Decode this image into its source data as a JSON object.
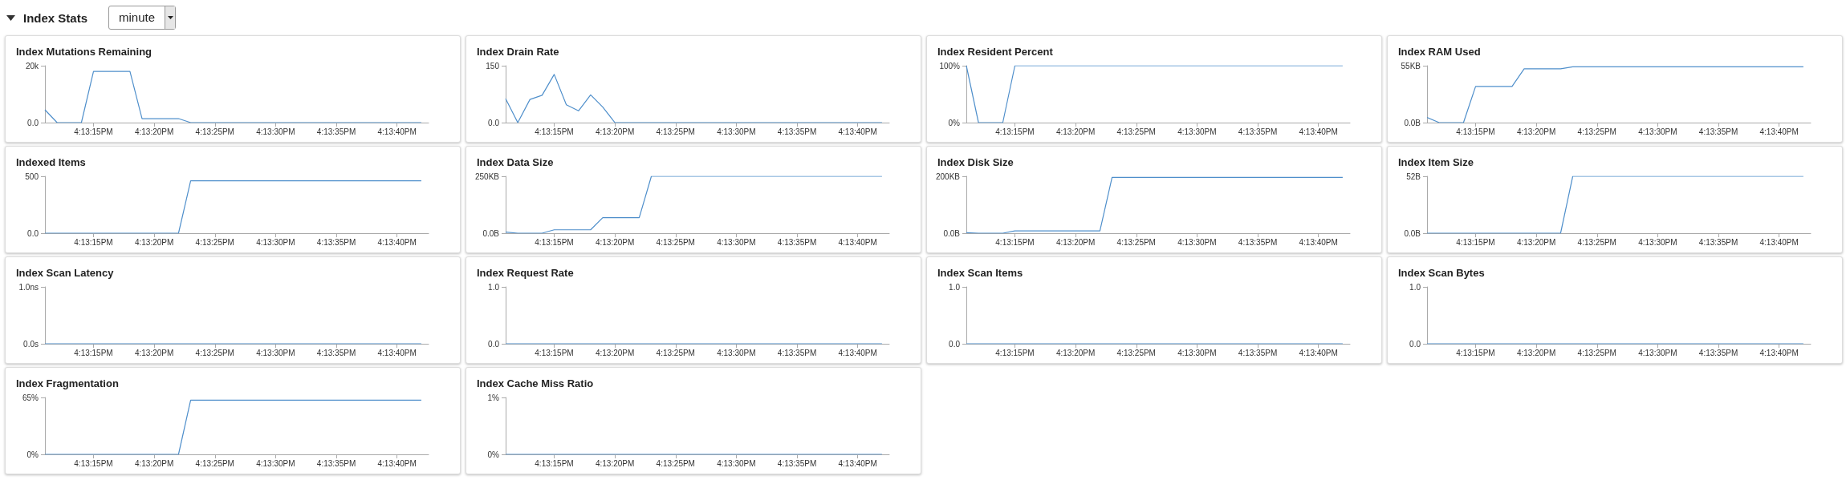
{
  "chart_data": [
    {
      "type": "other",
      "title": "Index Stats",
      "annotations": [
        "minute"
      ]
    },
    {
      "type": "line",
      "title": "Index Mutations Remaining",
      "color": "#4f8fcb",
      "grid": false,
      "marker": "none",
      "line_style": "solid",
      "xlim": [
        16.219722,
        16.2285
      ],
      "xticks": [
        {
          "value": 16.220833,
          "label": "4:13:15PM"
        },
        {
          "value": 16.222222,
          "label": "4:13:20PM"
        },
        {
          "value": 16.223611,
          "label": "4:13:25PM"
        },
        {
          "value": 16.225,
          "label": "4:13:30PM"
        },
        {
          "value": 16.226389,
          "label": "4:13:35PM"
        },
        {
          "value": 16.227778,
          "label": "4:13:40PM"
        }
      ],
      "ylim": [
        0,
        20000
      ],
      "yticks": [
        {
          "value": 0,
          "label": "0.0"
        },
        {
          "value": 20000,
          "label": "20k"
        }
      ],
      "x": [
        16.219722,
        16.22,
        16.220278,
        16.220556,
        16.220833,
        16.221111,
        16.221389,
        16.221667,
        16.221944,
        16.222222,
        16.2225,
        16.222778,
        16.223056,
        16.223333,
        16.223611,
        16.223889,
        16.224167,
        16.224444,
        16.224722,
        16.225,
        16.225278,
        16.225556,
        16.225833,
        16.226111,
        16.226389,
        16.226667,
        16.226944,
        16.227222,
        16.2275,
        16.227778,
        16.228056,
        16.228333
      ],
      "values": [
        4500,
        0,
        0,
        0,
        18000,
        18000,
        18000,
        18000,
        1400,
        1400,
        1400,
        1400,
        0,
        0,
        0,
        0,
        0,
        0,
        0,
        0,
        0,
        0,
        0,
        0,
        0,
        0,
        0,
        0,
        0,
        0,
        0,
        0
      ]
    },
    {
      "type": "line",
      "title": "Index Drain Rate",
      "color": "#4f8fcb",
      "grid": false,
      "marker": "none",
      "line_style": "solid",
      "xlim": [
        16.219722,
        16.2285
      ],
      "xticks": [
        {
          "value": 16.220833,
          "label": "4:13:15PM"
        },
        {
          "value": 16.222222,
          "label": "4:13:20PM"
        },
        {
          "value": 16.223611,
          "label": "4:13:25PM"
        },
        {
          "value": 16.225,
          "label": "4:13:30PM"
        },
        {
          "value": 16.226389,
          "label": "4:13:35PM"
        },
        {
          "value": 16.227778,
          "label": "4:13:40PM"
        }
      ],
      "ylim": [
        0,
        150
      ],
      "yticks": [
        {
          "value": 0,
          "label": "0.0"
        },
        150
      ],
      "x": [
        16.219722,
        16.22,
        16.220278,
        16.220556,
        16.220833,
        16.221111,
        16.221389,
        16.221667,
        16.221944,
        16.222222,
        16.2225,
        16.222778,
        16.223056,
        16.223333,
        16.223611,
        16.223889,
        16.224167,
        16.224444,
        16.224722,
        16.225,
        16.225278,
        16.225556,
        16.225833,
        16.226111,
        16.226389,
        16.226667,
        16.226944,
        16.227222,
        16.2275,
        16.227778,
        16.228056,
        16.228333
      ],
      "values": [
        63,
        0,
        61,
        72,
        127,
        47,
        31,
        73,
        41,
        0,
        0,
        0,
        0,
        0,
        0,
        0,
        0,
        0,
        0,
        0,
        0,
        0,
        0,
        0,
        0,
        0,
        0,
        0,
        0,
        0,
        0,
        0
      ]
    },
    {
      "type": "line",
      "title": "Index Resident Percent",
      "color": "#4f8fcb",
      "grid": false,
      "marker": "none",
      "line_style": "solid",
      "xlim": [
        16.219722,
        16.2285
      ],
      "xticks": [
        {
          "value": 16.220833,
          "label": "4:13:15PM"
        },
        {
          "value": 16.222222,
          "label": "4:13:20PM"
        },
        {
          "value": 16.223611,
          "label": "4:13:25PM"
        },
        {
          "value": 16.225,
          "label": "4:13:30PM"
        },
        {
          "value": 16.226389,
          "label": "4:13:35PM"
        },
        {
          "value": 16.227778,
          "label": "4:13:40PM"
        }
      ],
      "ylim": [
        0,
        100
      ],
      "yticks": [
        {
          "value": 0,
          "label": "0%"
        },
        {
          "value": 100,
          "label": "100%"
        }
      ],
      "x": [
        16.219722,
        16.22,
        16.220278,
        16.220556,
        16.220833,
        16.221111,
        16.221389,
        16.221667,
        16.221944,
        16.222222,
        16.2225,
        16.222778,
        16.223056,
        16.223333,
        16.223611,
        16.223889,
        16.224167,
        16.224444,
        16.224722,
        16.225,
        16.225278,
        16.225556,
        16.225833,
        16.226111,
        16.226389,
        16.226667,
        16.226944,
        16.227222,
        16.2275,
        16.227778,
        16.228056,
        16.228333
      ],
      "values": [
        100,
        0,
        0,
        0,
        100,
        100,
        100,
        100,
        100,
        100,
        100,
        100,
        100,
        100,
        100,
        100,
        100,
        100,
        100,
        100,
        100,
        100,
        100,
        100,
        100,
        100,
        100,
        100,
        100,
        100,
        100,
        100
      ]
    },
    {
      "type": "line",
      "title": "Index RAM Used",
      "color": "#4f8fcb",
      "grid": false,
      "marker": "none",
      "line_style": "solid",
      "xlim": [
        16.219722,
        16.2285
      ],
      "xticks": [
        {
          "value": 16.220833,
          "label": "4:13:15PM"
        },
        {
          "value": 16.222222,
          "label": "4:13:20PM"
        },
        {
          "value": 16.223611,
          "label": "4:13:25PM"
        },
        {
          "value": 16.225,
          "label": "4:13:30PM"
        },
        {
          "value": 16.226389,
          "label": "4:13:35PM"
        },
        {
          "value": 16.227778,
          "label": "4:13:40PM"
        }
      ],
      "ylim": [
        0,
        55
      ],
      "yticks": [
        {
          "value": 0,
          "label": "0.0B"
        },
        {
          "value": 55,
          "label": "55KB"
        }
      ],
      "x": [
        16.219722,
        16.22,
        16.220278,
        16.220556,
        16.220833,
        16.221111,
        16.221389,
        16.221667,
        16.221944,
        16.222222,
        16.2225,
        16.222778,
        16.223056,
        16.223333,
        16.223611,
        16.223889,
        16.224167,
        16.224444,
        16.224722,
        16.225,
        16.225278,
        16.225556,
        16.225833,
        16.226111,
        16.226389,
        16.226667,
        16.226944,
        16.227222,
        16.2275,
        16.227778,
        16.228056,
        16.228333
      ],
      "values": [
        5,
        0,
        0,
        0,
        35,
        35,
        35,
        35,
        52,
        52,
        52,
        52,
        54,
        54,
        54,
        54,
        54,
        54,
        54,
        54,
        54,
        54,
        54,
        54,
        54,
        54,
        54,
        54,
        54,
        54,
        54,
        54
      ]
    },
    {
      "type": "line",
      "title": "Indexed Items",
      "color": "#4f8fcb",
      "grid": false,
      "marker": "none",
      "line_style": "solid",
      "xlim": [
        16.219722,
        16.2285
      ],
      "xticks": [
        {
          "value": 16.220833,
          "label": "4:13:15PM"
        },
        {
          "value": 16.222222,
          "label": "4:13:20PM"
        },
        {
          "value": 16.223611,
          "label": "4:13:25PM"
        },
        {
          "value": 16.225,
          "label": "4:13:30PM"
        },
        {
          "value": 16.226389,
          "label": "4:13:35PM"
        },
        {
          "value": 16.227778,
          "label": "4:13:40PM"
        }
      ],
      "ylim": [
        0,
        500
      ],
      "yticks": [
        {
          "value": 0,
          "label": "0.0"
        },
        500
      ],
      "x": [
        16.219722,
        16.22,
        16.220278,
        16.220556,
        16.220833,
        16.221111,
        16.221389,
        16.221667,
        16.221944,
        16.222222,
        16.2225,
        16.222778,
        16.223056,
        16.223333,
        16.223611,
        16.223889,
        16.224167,
        16.224444,
        16.224722,
        16.225,
        16.225278,
        16.225556,
        16.225833,
        16.226111,
        16.226389,
        16.226667,
        16.226944,
        16.227222,
        16.2275,
        16.227778,
        16.228056,
        16.228333
      ],
      "values": [
        0,
        0,
        0,
        0,
        0,
        0,
        0,
        0,
        0,
        0,
        0,
        0,
        460,
        460,
        460,
        460,
        460,
        460,
        460,
        460,
        460,
        460,
        460,
        460,
        460,
        460,
        460,
        460,
        460,
        460,
        460,
        460
      ]
    },
    {
      "type": "line",
      "title": "Index Data Size",
      "color": "#4f8fcb",
      "grid": false,
      "marker": "none",
      "line_style": "solid",
      "xlim": [
        16.219722,
        16.2285
      ],
      "xticks": [
        {
          "value": 16.220833,
          "label": "4:13:15PM"
        },
        {
          "value": 16.222222,
          "label": "4:13:20PM"
        },
        {
          "value": 16.223611,
          "label": "4:13:25PM"
        },
        {
          "value": 16.225,
          "label": "4:13:30PM"
        },
        {
          "value": 16.226389,
          "label": "4:13:35PM"
        },
        {
          "value": 16.227778,
          "label": "4:13:40PM"
        }
      ],
      "ylim": [
        0,
        250
      ],
      "yticks": [
        {
          "value": 0,
          "label": "0.0B"
        },
        {
          "value": 250,
          "label": "250KB"
        }
      ],
      "x": [
        16.219722,
        16.22,
        16.220278,
        16.220556,
        16.220833,
        16.221111,
        16.221389,
        16.221667,
        16.221944,
        16.222222,
        16.2225,
        16.222778,
        16.223056,
        16.223333,
        16.223611,
        16.223889,
        16.224167,
        16.224444,
        16.224722,
        16.225,
        16.225278,
        16.225556,
        16.225833,
        16.226111,
        16.226389,
        16.226667,
        16.226944,
        16.227222,
        16.2275,
        16.227778,
        16.228056,
        16.228333
      ],
      "values": [
        5,
        0,
        0,
        0,
        15,
        15,
        15,
        15,
        68,
        68,
        68,
        68,
        250,
        250,
        250,
        250,
        250,
        250,
        250,
        250,
        250,
        250,
        250,
        250,
        250,
        250,
        250,
        250,
        250,
        250,
        250,
        250
      ]
    },
    {
      "type": "line",
      "title": "Index Disk Size",
      "color": "#4f8fcb",
      "grid": false,
      "marker": "none",
      "line_style": "solid",
      "xlim": [
        16.219722,
        16.2285
      ],
      "xticks": [
        {
          "value": 16.220833,
          "label": "4:13:15PM"
        },
        {
          "value": 16.222222,
          "label": "4:13:20PM"
        },
        {
          "value": 16.223611,
          "label": "4:13:25PM"
        },
        {
          "value": 16.225,
          "label": "4:13:30PM"
        },
        {
          "value": 16.226389,
          "label": "4:13:35PM"
        },
        {
          "value": 16.227778,
          "label": "4:13:40PM"
        }
      ],
      "ylim": [
        0,
        200
      ],
      "yticks": [
        {
          "value": 0,
          "label": "0.0B"
        },
        {
          "value": 200,
          "label": "200KB"
        }
      ],
      "x": [
        16.219722,
        16.22,
        16.220278,
        16.220556,
        16.220833,
        16.221111,
        16.221389,
        16.221667,
        16.221944,
        16.222222,
        16.2225,
        16.222778,
        16.223056,
        16.223333,
        16.223611,
        16.223889,
        16.224167,
        16.224444,
        16.224722,
        16.225,
        16.225278,
        16.225556,
        16.225833,
        16.226111,
        16.226389,
        16.226667,
        16.226944,
        16.227222,
        16.2275,
        16.227778,
        16.228056,
        16.228333
      ],
      "values": [
        2,
        0,
        0,
        0,
        8,
        8,
        8,
        8,
        8,
        8,
        8,
        8,
        196,
        196,
        196,
        196,
        196,
        196,
        196,
        196,
        196,
        196,
        196,
        196,
        196,
        196,
        196,
        196,
        196,
        196,
        196,
        196
      ]
    },
    {
      "type": "line",
      "title": "Index Item Size",
      "color": "#4f8fcb",
      "grid": false,
      "marker": "none",
      "line_style": "solid",
      "xlim": [
        16.219722,
        16.2285
      ],
      "xticks": [
        {
          "value": 16.220833,
          "label": "4:13:15PM"
        },
        {
          "value": 16.222222,
          "label": "4:13:20PM"
        },
        {
          "value": 16.223611,
          "label": "4:13:25PM"
        },
        {
          "value": 16.225,
          "label": "4:13:30PM"
        },
        {
          "value": 16.226389,
          "label": "4:13:35PM"
        },
        {
          "value": 16.227778,
          "label": "4:13:40PM"
        }
      ],
      "ylim": [
        0,
        52
      ],
      "yticks": [
        {
          "value": 0,
          "label": "0.0B"
        },
        {
          "value": 52,
          "label": "52B"
        }
      ],
      "x": [
        16.219722,
        16.22,
        16.220278,
        16.220556,
        16.220833,
        16.221111,
        16.221389,
        16.221667,
        16.221944,
        16.222222,
        16.2225,
        16.222778,
        16.223056,
        16.223333,
        16.223611,
        16.223889,
        16.224167,
        16.224444,
        16.224722,
        16.225,
        16.225278,
        16.225556,
        16.225833,
        16.226111,
        16.226389,
        16.226667,
        16.226944,
        16.227222,
        16.2275,
        16.227778,
        16.228056,
        16.228333
      ],
      "values": [
        0,
        0,
        0,
        0,
        0,
        0,
        0,
        0,
        0,
        0,
        0,
        0,
        52,
        52,
        52,
        52,
        52,
        52,
        52,
        52,
        52,
        52,
        52,
        52,
        52,
        52,
        52,
        52,
        52,
        52,
        52,
        52
      ]
    },
    {
      "type": "line",
      "title": "Index Scan Latency",
      "color": "#4f8fcb",
      "grid": false,
      "marker": "none",
      "line_style": "solid",
      "xlim": [
        16.219722,
        16.2285
      ],
      "xticks": [
        {
          "value": 16.220833,
          "label": "4:13:15PM"
        },
        {
          "value": 16.222222,
          "label": "4:13:20PM"
        },
        {
          "value": 16.223611,
          "label": "4:13:25PM"
        },
        {
          "value": 16.225,
          "label": "4:13:30PM"
        },
        {
          "value": 16.226389,
          "label": "4:13:35PM"
        },
        {
          "value": 16.227778,
          "label": "4:13:40PM"
        }
      ],
      "ylim": [
        0,
        1
      ],
      "yticks": [
        {
          "value": 0,
          "label": "0.0s"
        },
        {
          "value": 1,
          "label": "1.0ns"
        }
      ],
      "x": [
        16.219722,
        16.228333
      ],
      "values": [
        0,
        0
      ]
    },
    {
      "type": "line",
      "title": "Index Request Rate",
      "color": "#4f8fcb",
      "grid": false,
      "marker": "none",
      "line_style": "solid",
      "xlim": [
        16.219722,
        16.2285
      ],
      "xticks": [
        {
          "value": 16.220833,
          "label": "4:13:15PM"
        },
        {
          "value": 16.222222,
          "label": "4:13:20PM"
        },
        {
          "value": 16.223611,
          "label": "4:13:25PM"
        },
        {
          "value": 16.225,
          "label": "4:13:30PM"
        },
        {
          "value": 16.226389,
          "label": "4:13:35PM"
        },
        {
          "value": 16.227778,
          "label": "4:13:40PM"
        }
      ],
      "ylim": [
        0,
        1
      ],
      "yticks": [
        {
          "value": 0,
          "label": "0.0"
        },
        {
          "value": 1,
          "label": "1.0"
        }
      ],
      "x": [
        16.219722,
        16.228333
      ],
      "values": [
        0,
        0
      ]
    },
    {
      "type": "line",
      "title": "Index Scan Items",
      "color": "#4f8fcb",
      "grid": false,
      "marker": "none",
      "line_style": "solid",
      "xlim": [
        16.219722,
        16.2285
      ],
      "xticks": [
        {
          "value": 16.220833,
          "label": "4:13:15PM"
        },
        {
          "value": 16.222222,
          "label": "4:13:20PM"
        },
        {
          "value": 16.223611,
          "label": "4:13:25PM"
        },
        {
          "value": 16.225,
          "label": "4:13:30PM"
        },
        {
          "value": 16.226389,
          "label": "4:13:35PM"
        },
        {
          "value": 16.227778,
          "label": "4:13:40PM"
        }
      ],
      "ylim": [
        0,
        1
      ],
      "yticks": [
        {
          "value": 0,
          "label": "0.0"
        },
        {
          "value": 1,
          "label": "1.0"
        }
      ],
      "x": [
        16.219722,
        16.228333
      ],
      "values": [
        0,
        0
      ]
    },
    {
      "type": "line",
      "title": "Index Scan Bytes",
      "color": "#4f8fcb",
      "grid": false,
      "marker": "none",
      "line_style": "solid",
      "xlim": [
        16.219722,
        16.2285
      ],
      "xticks": [
        {
          "value": 16.220833,
          "label": "4:13:15PM"
        },
        {
          "value": 16.222222,
          "label": "4:13:20PM"
        },
        {
          "value": 16.223611,
          "label": "4:13:25PM"
        },
        {
          "value": 16.225,
          "label": "4:13:30PM"
        },
        {
          "value": 16.226389,
          "label": "4:13:35PM"
        },
        {
          "value": 16.227778,
          "label": "4:13:40PM"
        }
      ],
      "ylim": [
        0,
        1
      ],
      "yticks": [
        {
          "value": 0,
          "label": "0.0"
        },
        {
          "value": 1,
          "label": "1.0"
        }
      ],
      "x": [
        16.219722,
        16.228333
      ],
      "values": [
        0,
        0
      ]
    },
    {
      "type": "line",
      "title": "Index Fragmentation",
      "color": "#4f8fcb",
      "grid": false,
      "marker": "none",
      "line_style": "solid",
      "xlim": [
        16.219722,
        16.2285
      ],
      "xticks": [
        {
          "value": 16.220833,
          "label": "4:13:15PM"
        },
        {
          "value": 16.222222,
          "label": "4:13:20PM"
        },
        {
          "value": 16.223611,
          "label": "4:13:25PM"
        },
        {
          "value": 16.225,
          "label": "4:13:30PM"
        },
        {
          "value": 16.226389,
          "label": "4:13:35PM"
        },
        {
          "value": 16.227778,
          "label": "4:13:40PM"
        }
      ],
      "ylim": [
        0,
        65
      ],
      "yticks": [
        {
          "value": 0,
          "label": "0%"
        },
        {
          "value": 65,
          "label": "65%"
        }
      ],
      "x": [
        16.219722,
        16.22,
        16.220278,
        16.220556,
        16.220833,
        16.221111,
        16.221389,
        16.221667,
        16.221944,
        16.222222,
        16.2225,
        16.222778,
        16.223056,
        16.223333,
        16.223611,
        16.223889,
        16.224167,
        16.224444,
        16.224722,
        16.225,
        16.225278,
        16.225556,
        16.225833,
        16.226111,
        16.226389,
        16.226667,
        16.226944,
        16.227222,
        16.2275,
        16.227778,
        16.228056,
        16.228333
      ],
      "values": [
        0,
        0,
        0,
        0,
        0,
        0,
        0,
        0,
        0,
        0,
        0,
        0,
        62,
        62,
        62,
        62,
        62,
        62,
        62,
        62,
        62,
        62,
        62,
        62,
        62,
        62,
        62,
        62,
        62,
        62,
        62,
        62
      ]
    },
    {
      "type": "line",
      "title": "Index Cache Miss Ratio",
      "color": "#4f8fcb",
      "grid": false,
      "marker": "none",
      "line_style": "solid",
      "xlim": [
        16.219722,
        16.2285
      ],
      "xticks": [
        {
          "value": 16.220833,
          "label": "4:13:15PM"
        },
        {
          "value": 16.222222,
          "label": "4:13:20PM"
        },
        {
          "value": 16.223611,
          "label": "4:13:25PM"
        },
        {
          "value": 16.225,
          "label": "4:13:30PM"
        },
        {
          "value": 16.226389,
          "label": "4:13:35PM"
        },
        {
          "value": 16.227778,
          "label": "4:13:40PM"
        }
      ],
      "ylim": [
        0,
        1
      ],
      "yticks": [
        {
          "value": 0,
          "label": "0%"
        },
        {
          "value": 1,
          "label": "1%"
        }
      ],
      "x": [
        16.219722,
        16.228333
      ],
      "values": [
        0,
        0
      ]
    }
  ]
}
